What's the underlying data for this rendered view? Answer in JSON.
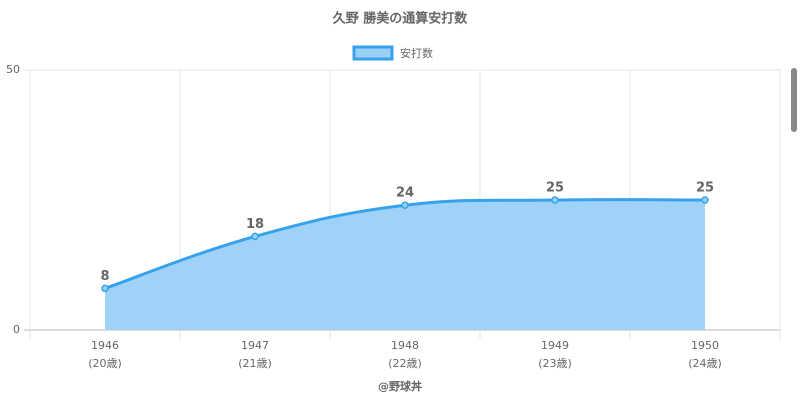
{
  "chart_data": {
    "type": "area",
    "title": "久野 勝美の通算安打数",
    "categories": [
      "1946",
      "1947",
      "1948",
      "1949",
      "1950"
    ],
    "age_labels": [
      "(20歳)",
      "(21歳)",
      "(22歳)",
      "(23歳)",
      "(24歳)"
    ],
    "series": [
      {
        "name": "安打数",
        "color": "#36a2eb",
        "fill": "#9ad0f5",
        "values": [
          8,
          18,
          24,
          25,
          25
        ]
      }
    ],
    "ylim": [
      0,
      50
    ],
    "yticks": [
      0,
      50
    ],
    "grid": true,
    "legend": "top",
    "x_label": "@野球丼"
  }
}
